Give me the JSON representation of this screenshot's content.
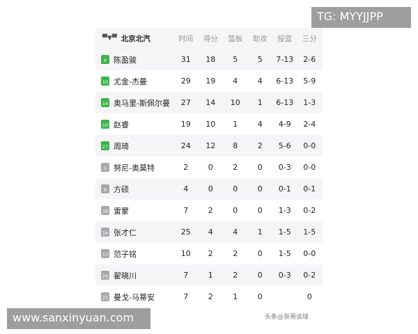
{
  "team": {
    "name": "北京北汽",
    "logo_icon": "team-logo-icon"
  },
  "columns": [
    "时间",
    "得分",
    "篮板",
    "助攻",
    "投篮",
    "三分"
  ],
  "colors": {
    "starter": "#3cb44b",
    "bench": "#a9a9ad"
  },
  "players": [
    {
      "jersey": "9",
      "name": "陈盈骏",
      "starter": true,
      "stats": [
        "31",
        "18",
        "5",
        "5",
        "7-13",
        "2-6"
      ]
    },
    {
      "jersey": "10",
      "name": "尤金-杰曼",
      "starter": true,
      "stats": [
        "29",
        "19",
        "4",
        "4",
        "6-13",
        "5-9"
      ]
    },
    {
      "jersey": "14",
      "name": "奥马里-斯佩尔曼",
      "starter": true,
      "stats": [
        "27",
        "14",
        "10",
        "1",
        "6-13",
        "1-3"
      ]
    },
    {
      "jersey": "10",
      "name": "赵睿",
      "starter": true,
      "stats": [
        "19",
        "10",
        "1",
        "4",
        "4-9",
        "2-4"
      ]
    },
    {
      "jersey": "27",
      "name": "周琦",
      "starter": true,
      "stats": [
        "24",
        "12",
        "8",
        "2",
        "5-6",
        "0-0"
      ]
    },
    {
      "jersey": "5",
      "name": "努尼-奥莫特",
      "starter": false,
      "stats": [
        "2",
        "0",
        "2",
        "0",
        "0-3",
        "0-0"
      ]
    },
    {
      "jersey": "8",
      "name": "方硕",
      "starter": false,
      "stats": [
        "4",
        "0",
        "0",
        "0",
        "0-1",
        "0-1"
      ]
    },
    {
      "jersey": "39",
      "name": "雷蒙",
      "starter": false,
      "stats": [
        "7",
        "2",
        "0",
        "0",
        "1-3",
        "0-2"
      ]
    },
    {
      "jersey": "16",
      "name": "张才仁",
      "starter": false,
      "stats": [
        "25",
        "4",
        "4",
        "1",
        "1-5",
        "1-5"
      ]
    },
    {
      "jersey": "17",
      "name": "范子铭",
      "starter": false,
      "stats": [
        "10",
        "2",
        "2",
        "0",
        "1-5",
        "0-0"
      ]
    },
    {
      "jersey": "20",
      "name": "翟晓川",
      "starter": false,
      "stats": [
        "7",
        "1",
        "2",
        "0",
        "0-3",
        "0-2"
      ]
    },
    {
      "jersey": "21",
      "name": "曼戈-马蒂安",
      "starter": false,
      "stats": [
        "7",
        "2",
        "1",
        "0",
        "",
        "0"
      ]
    }
  ],
  "watermarks": {
    "top": "TG: MYYJJPP",
    "bottom": "www.sanxinyuan.com",
    "toutiao": "头条@张哥谈球"
  }
}
